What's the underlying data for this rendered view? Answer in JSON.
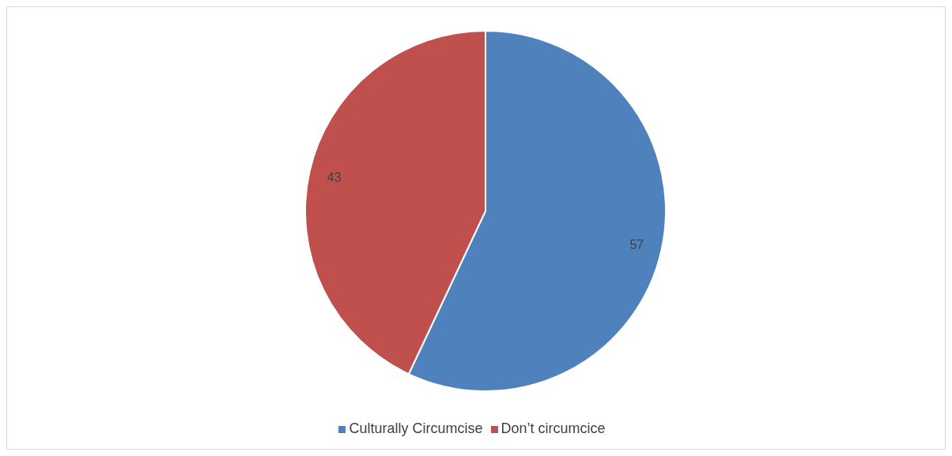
{
  "chart_data": {
    "type": "pie",
    "categories": [
      "Culturally Circumcise",
      "Don’t circumcice"
    ],
    "values": [
      57,
      43
    ],
    "colors": [
      "#4f81bd",
      "#c0504d"
    ],
    "data_labels": true,
    "legend": "bottom"
  }
}
